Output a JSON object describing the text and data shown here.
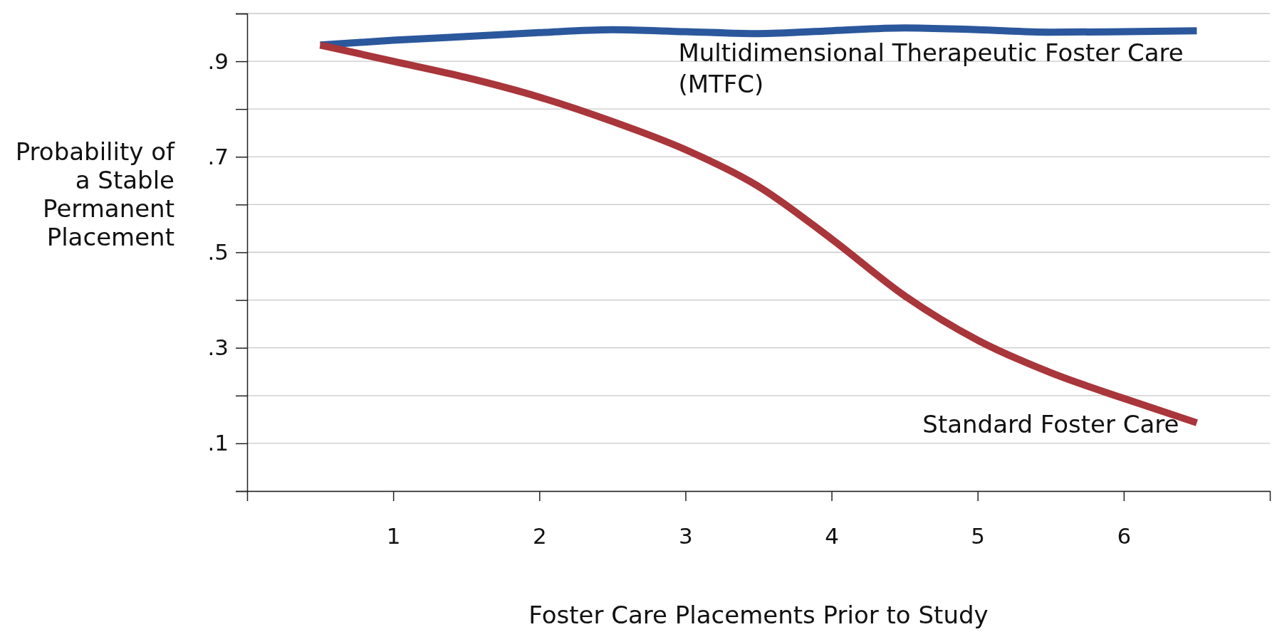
{
  "chart_data": {
    "type": "line",
    "xlabel": "Foster Care Placements Prior to Study",
    "ylabel": "Probability of a Stable Permanent Placement",
    "xlim": [
      0,
      7
    ],
    "xticks": [
      1,
      2,
      3,
      4,
      5,
      6
    ],
    "ylim": [
      0,
      1
    ],
    "yticks": [
      {
        "value": 0,
        "label": null
      },
      {
        "value": 0.1,
        "label": ".1"
      },
      {
        "value": 0.2,
        "label": null
      },
      {
        "value": 0.3,
        "label": ".3"
      },
      {
        "value": 0.4,
        "label": null
      },
      {
        "value": 0.5,
        "label": ".5"
      },
      {
        "value": 0.6,
        "label": null
      },
      {
        "value": 0.7,
        "label": ".7"
      },
      {
        "value": 0.8,
        "label": null
      },
      {
        "value": 0.9,
        "label": ".9"
      },
      {
        "value": 1,
        "label": null
      }
    ],
    "grid": "y",
    "marker": "none",
    "line_style": "solid",
    "series": [
      {
        "name": "Multidimensional Therapeutic Foster Care (MTFC)",
        "color": "#2b579c",
        "x": [
          0.5,
          1,
          1.5,
          2,
          2.5,
          3,
          3.5,
          4,
          4.5,
          5,
          5.5,
          6,
          6.5
        ],
        "values": [
          0.934,
          0.944,
          0.952,
          0.96,
          0.966,
          0.962,
          0.958,
          0.964,
          0.97,
          0.966,
          0.961,
          0.962,
          0.964
        ]
      },
      {
        "name": "Standard Foster Care",
        "color": "#a8363b",
        "x": [
          0.5,
          1,
          1.5,
          2,
          2.5,
          3,
          3.5,
          4,
          4.5,
          5,
          5.5,
          6,
          6.5
        ],
        "values": [
          0.934,
          0.9,
          0.866,
          0.825,
          0.774,
          0.715,
          0.638,
          0.528,
          0.409,
          0.316,
          0.248,
          0.194,
          0.143
        ]
      }
    ]
  }
}
